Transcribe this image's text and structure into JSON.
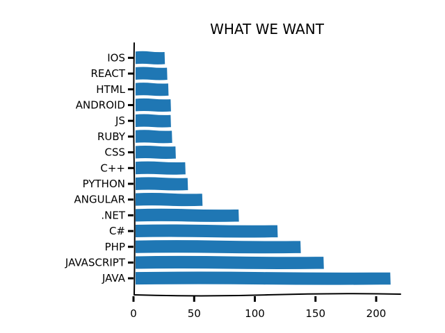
{
  "chart_data": {
    "type": "bar",
    "orientation": "horizontal",
    "title": "WHAT WE WANT",
    "xlabel": "",
    "ylabel": "",
    "categories": [
      "JAVA",
      "JAVASCRIPT",
      "PHP",
      "C#",
      ".NET",
      "ANGULAR",
      "PYTHON",
      "C++",
      "CSS",
      "RUBY",
      "JS",
      "ANDROID",
      "HTML",
      "REACT",
      "IOS"
    ],
    "values": [
      211,
      156,
      137,
      118,
      86,
      56,
      44,
      42,
      34,
      31,
      30,
      30,
      28,
      27,
      25
    ],
    "xlim": [
      0,
      220
    ],
    "xticks": [
      "0",
      "50",
      "100",
      "150",
      "200"
    ],
    "grid": false,
    "bar_color": "#1f77b4"
  }
}
